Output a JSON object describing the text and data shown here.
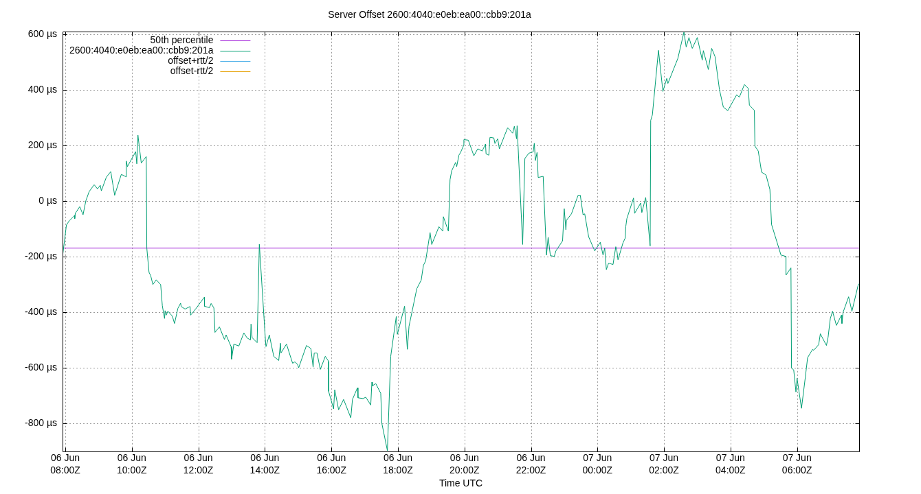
{
  "chart_data": {
    "type": "line",
    "title": "Server Offset 2600:4040:e0eb:ea00::cbb9:201a",
    "xlabel": "Time UTC",
    "x": [
      "--06-06T07:55",
      "--06-06T08:02",
      "--06-06T08:07",
      "--06-06T08:17",
      "--06-06T08:17",
      "--06-06T08:18",
      "--06-06T08:26",
      "--06-06T08:32",
      "--06-06T08:37",
      "--06-06T08:43",
      "--06-06T08:52",
      "--06-06T08:58",
      "--06-06T09:03",
      "--06-06T09:05",
      "--06-06T09:14",
      "--06-06T09:22",
      "--06-06T09:29",
      "--06-06T09:41",
      "--06-06T09:50",
      "--06-06T09:50",
      "--06-06T09:52",
      "--06-06T10:07",
      "--06-06T10:09",
      "--06-06T10:11",
      "--06-06T10:17",
      "--06-06T10:26",
      "--06-06T10:27",
      "--06-06T10:31",
      "--06-06T10:34",
      "--06-06T10:38",
      "--06-06T10:44",
      "--06-06T10:52",
      "--06-06T10:55",
      "--06-06T10:56",
      "--06-06T10:59",
      "--06-06T11:00",
      "--06-06T11:02",
      "--06-06T11:05",
      "--06-06T11:13",
      "--06-06T11:17",
      "--06-06T11:23",
      "--06-06T11:28",
      "--06-06T11:29",
      "--06-06T11:36",
      "--06-06T11:45",
      "--06-06T11:46",
      "--06-06T11:55",
      "--06-06T12:11",
      "--06-06T12:11",
      "--06-06T12:20",
      "--06-06T12:23",
      "--06-06T12:28",
      "--06-06T12:30",
      "--06-06T12:38",
      "--06-06T12:47",
      "--06-06T12:50",
      "--06-06T12:59",
      "--06-06T13:00",
      "--06-06T13:04",
      "--06-06T13:13",
      "--06-06T13:22",
      "--06-06T13:28",
      "--06-06T13:34",
      "--06-06T13:35",
      "--06-06T13:37",
      "--06-06T13:46",
      "--06-06T13:50",
      "--06-06T14:01",
      "--06-06T14:02",
      "--06-06T14:08",
      "--06-06T14:16",
      "--06-06T14:25",
      "--06-06T14:28",
      "--06-06T14:29",
      "--06-06T14:39",
      "--06-06T14:50",
      "--06-06T14:54",
      "--06-06T14:59",
      "--06-06T15:01",
      "--06-06T15:15",
      "--06-06T15:23",
      "--06-06T15:27",
      "--06-06T15:29",
      "--06-06T15:34",
      "--06-06T15:40",
      "--06-06T15:49",
      "--06-06T15:55",
      "--06-06T15:55",
      "--06-06T16:04",
      "--06-06T16:06",
      "--06-06T16:13",
      "--06-06T16:22",
      "--06-06T16:35",
      "--06-06T16:38",
      "--06-06T16:47",
      "--06-06T16:48",
      "--06-06T16:57",
      "--06-06T17:02",
      "--06-06T17:11",
      "--06-06T17:13",
      "--06-06T17:14",
      "--06-06T17:20",
      "--06-06T17:29",
      "--06-06T17:31",
      "--06-06T17:41",
      "--06-06T17:47",
      "--06-06T17:57",
      "--06-06T17:59",
      "--06-06T18:12",
      "--06-06T18:17",
      "--06-06T18:20",
      "--06-06T18:34",
      "--06-06T18:42",
      "--06-06T18:46",
      "--06-06T18:50",
      "--06-06T18:58",
      "--06-06T19:01",
      "--06-06T19:14",
      "--06-06T19:21",
      "--06-06T19:22",
      "--06-06T19:31",
      "--06-06T19:34",
      "--06-06T19:37",
      "--06-06T19:44",
      "--06-06T19:46",
      "--06-06T19:50",
      "--06-06T19:53",
      "--06-06T19:59",
      "--06-06T19:59",
      "--06-06T20:07",
      "--06-06T20:17",
      "--06-06T20:24",
      "--06-06T20:32",
      "--06-06T20:38",
      "--06-06T20:39",
      "--06-06T20:44",
      "--06-06T20:46",
      "--06-06T20:53",
      "--06-06T20:55",
      "--06-06T21:00",
      "--06-06T21:03",
      "--06-06T21:12",
      "--06-06T21:18",
      "--06-06T21:27",
      "--06-06T21:30",
      "--06-06T21:34",
      "--06-06T21:35",
      "--06-06T21:45",
      "--06-06T21:49",
      "--06-06T21:56",
      "--06-06T22:04",
      "--06-06T22:06",
      "--06-06T22:08",
      "--06-06T22:11",
      "--06-06T22:13",
      "--06-06T22:22",
      "--06-06T22:28",
      "--06-06T22:31",
      "--06-06T22:35",
      "--06-06T22:42",
      "--06-06T22:45",
      "--06-06T22:57",
      "--06-06T23:00",
      "--06-06T23:03",
      "--06-06T23:04",
      "--06-06T23:13",
      "--06-06T23:25",
      "--06-06T23:29",
      "--06-06T23:34",
      "--06-06T23:37",
      "--06-06T23:44",
      "--06-06T23:55",
      "--06-07T00:05",
      "--06-07T00:10",
      "--06-07T00:13",
      "--06-07T00:16",
      "--06-07T00:20",
      "--06-07T00:28",
      "--06-07T00:33",
      "--06-07T00:35",
      "--06-07T00:37",
      "--06-07T00:46",
      "--06-07T00:50",
      "--06-07T00:51",
      "--06-07T00:53",
      "--06-07T01:05",
      "--06-07T01:07",
      "--06-07T01:18",
      "--06-07T01:20",
      "--06-07T01:27",
      "--06-07T01:35",
      "--06-07T01:36",
      "--06-07T01:39",
      "--06-07T01:50",
      "--06-07T01:58",
      "--06-07T02:05",
      "--06-07T02:07",
      "--06-07T02:25",
      "--06-07T02:36",
      "--06-07T02:40",
      "--06-07T02:45",
      "--06-07T02:51",
      "--06-07T03:00",
      "--06-07T03:09",
      "--06-07T03:11",
      "--06-07T03:20",
      "--06-07T03:26",
      "--06-07T03:32",
      "--06-07T03:40",
      "--06-07T03:47",
      "--06-07T03:55",
      "--06-07T04:11",
      "--06-07T04:16",
      "--06-07T04:25",
      "--06-07T04:32",
      "--06-07T04:34",
      "--06-07T04:43",
      "--06-07T04:44",
      "--06-07T04:50",
      "--06-07T04:56",
      "--06-07T05:04",
      "--06-07T05:11",
      "--06-07T05:14",
      "--06-07T05:31",
      "--06-07T05:40",
      "--06-07T05:40",
      "--06-07T05:49",
      "--06-07T05:50",
      "--06-07T05:54",
      "--06-07T05:58",
      "--06-07T06:00",
      "--06-07T06:08",
      "--06-07T06:15",
      "--06-07T06:19",
      "--06-07T06:28",
      "--06-07T06:30",
      "--06-07T06:39",
      "--06-07T06:42",
      "--06-07T06:53",
      "--06-07T06:56",
      "--06-07T07:00",
      "--06-07T07:04",
      "--06-07T07:11",
      "--06-07T07:20",
      "--06-07T07:21",
      "--06-07T07:23",
      "--06-07T07:33",
      "--06-07T07:39",
      "--06-07T07:50",
      "--06-07T07:52"
    ],
    "series": [
      {
        "name": "2600:4040:e0eb:ea00::cbb9:201a",
        "color": "#009e73",
        "values": [
          -199,
          -86,
          -71,
          -51,
          -63,
          -44,
          -20,
          -49,
          1,
          34,
          59,
          44,
          57,
          37,
          86,
          106,
          21,
          96,
          87,
          144,
          124,
          178,
          134,
          237,
          137,
          160,
          -169,
          -256,
          -268,
          -300,
          -283,
          -300,
          -376,
          -376,
          -422,
          -394,
          -410,
          -396,
          -413,
          -440,
          -386,
          -367,
          -379,
          -388,
          -379,
          -410,
          -388,
          -345,
          -378,
          -383,
          -368,
          -384,
          -472,
          -452,
          -497,
          -481,
          -523,
          -568,
          -514,
          -521,
          -474,
          -492,
          -499,
          -442,
          -491,
          -509,
          -155,
          -500,
          -523,
          -481,
          -558,
          -573,
          -511,
          -546,
          -514,
          -583,
          -578,
          -587,
          -599,
          -519,
          -530,
          -597,
          -546,
          -546,
          -605,
          -558,
          -576,
          -684,
          -747,
          -678,
          -750,
          -713,
          -779,
          -713,
          -671,
          -707,
          -710,
          -705,
          -733,
          -651,
          -664,
          -656,
          -691,
          -799,
          -897,
          -558,
          -415,
          -479,
          -378,
          -533,
          -450,
          -315,
          -284,
          -231,
          -215,
          -113,
          -156,
          -92,
          -108,
          -56,
          -108,
          77,
          109,
          139,
          124,
          165,
          175,
          202,
          221,
          219,
          163,
          188,
          180,
          205,
          170,
          165,
          229,
          227,
          207,
          224,
          188,
          234,
          264,
          244,
          269,
          224,
          271,
          -156,
          153,
          172,
          177,
          208,
          146,
          175,
          85,
          89,
          -194,
          -130,
          -196,
          -199,
          -179,
          -143,
          -27,
          -103,
          -69,
          -46,
          21,
          21,
          -49,
          -46,
          -128,
          -179,
          -148,
          -194,
          -169,
          -246,
          -223,
          -228,
          -164,
          -179,
          -211,
          -150,
          -133,
          -92,
          -63,
          11,
          -44,
          -7,
          -41,
          13,
          -161,
          290,
          310,
          542,
          394,
          441,
          423,
          513,
          608,
          554,
          588,
          549,
          588,
          507,
          541,
          473,
          549,
          520,
          401,
          338,
          325,
          382,
          374,
          419,
          405,
          345,
          326,
          198,
          180,
          104,
          94,
          42,
          -84,
          -194,
          -199,
          -266,
          -240,
          -600,
          -607,
          -686,
          -637,
          -745,
          -632,
          -563,
          -533,
          -536,
          -516,
          -477,
          -519,
          -489,
          -422,
          -396,
          -447,
          -410,
          -440,
          -400,
          -344,
          -396,
          -304,
          -297
        ]
      },
      {
        "name": "offset+rtt/2",
        "color": "#56b4e9",
        "values": [
          null,
          null,
          null,
          null,
          null,
          null,
          null,
          null,
          null,
          null,
          null,
          null,
          null,
          null,
          null,
          null,
          null,
          null,
          null,
          null,
          null,
          null,
          null,
          null,
          null,
          null,
          null,
          null,
          null,
          null,
          null,
          null,
          null,
          null,
          null,
          null,
          null,
          null,
          null,
          null,
          null,
          null,
          null,
          null,
          null,
          null,
          null,
          null,
          null,
          null,
          null,
          null,
          null,
          null,
          null,
          null,
          null,
          null,
          null,
          null,
          null,
          null,
          null,
          null,
          null,
          null,
          null,
          null,
          null,
          null,
          null,
          null,
          null,
          null,
          null,
          null,
          null,
          null,
          null,
          null,
          null,
          null,
          null,
          null,
          null,
          null,
          null,
          null,
          null,
          null,
          null,
          null,
          null,
          null,
          null,
          null,
          null,
          null,
          null,
          null,
          null,
          null,
          null,
          null,
          null,
          null,
          null,
          null,
          null,
          null,
          null,
          null,
          null,
          null,
          null,
          null,
          null,
          null,
          null,
          null,
          null,
          null,
          null,
          null,
          null,
          null,
          null,
          null,
          null,
          null,
          null,
          null,
          null,
          null,
          null,
          null,
          null,
          null,
          null,
          null,
          null,
          null,
          null,
          null,
          null,
          null,
          null,
          null,
          null,
          null,
          null,
          null,
          null,
          null,
          null,
          null,
          null,
          null,
          null,
          null,
          null,
          null,
          null,
          null,
          null,
          null,
          null,
          null,
          null,
          null,
          null,
          null,
          null,
          null,
          null,
          null,
          null,
          null,
          null,
          null,
          null,
          null,
          null,
          null,
          null,
          null,
          null,
          null,
          null,
          null,
          null,
          null,
          null,
          null,
          null,
          null,
          null,
          null,
          null,
          null,
          null,
          null,
          null,
          null,
          null,
          null,
          null,
          null,
          null,
          null,
          null,
          null,
          null,
          null,
          null,
          null,
          null,
          null,
          null,
          null,
          null,
          null,
          null,
          null,
          null,
          null,
          null,
          null,
          null,
          null,
          null,
          null,
          null,
          null,
          null,
          null,
          null,
          null,
          null,
          null,
          null,
          null,
          null,
          null,
          null,
          null,
          null,
          null,
          null,
          null
        ]
      },
      {
        "name": "offset-rtt/2",
        "color": "#e69f00",
        "values": [
          null,
          null,
          null,
          null,
          null,
          null,
          null,
          null,
          null,
          null,
          null,
          null,
          null,
          null,
          null,
          null,
          null,
          null,
          null,
          null,
          null,
          null,
          null,
          null,
          null,
          null,
          null,
          null,
          null,
          null,
          null,
          null,
          null,
          null,
          null,
          null,
          null,
          null,
          null,
          null,
          null,
          null,
          null,
          null,
          null,
          null,
          null,
          null,
          null,
          null,
          null,
          null,
          null,
          null,
          null,
          null,
          null,
          null,
          null,
          null,
          null,
          null,
          null,
          null,
          null,
          null,
          null,
          null,
          null,
          null,
          null,
          null,
          null,
          null,
          null,
          null,
          null,
          null,
          null,
          null,
          null,
          null,
          null,
          null,
          null,
          null,
          null,
          null,
          null,
          null,
          null,
          null,
          null,
          null,
          null,
          null,
          null,
          null,
          null,
          null,
          null,
          null,
          null,
          null,
          null,
          null,
          null,
          null,
          null,
          null,
          null,
          null,
          null,
          null,
          null,
          null,
          null,
          null,
          null,
          null,
          null,
          null,
          null,
          null,
          null,
          null,
          null,
          null,
          null,
          null,
          null,
          null,
          null,
          null,
          null,
          null,
          null,
          null,
          null,
          null,
          null,
          null,
          null,
          null,
          null,
          null,
          null,
          null,
          null,
          null,
          null,
          null,
          null,
          null,
          null,
          null,
          null,
          null,
          null,
          null,
          null,
          null,
          null,
          null,
          null,
          null,
          null,
          null,
          null,
          null,
          null,
          null,
          null,
          null,
          null,
          null,
          null,
          null,
          null,
          null,
          null,
          null,
          null,
          null,
          null,
          null,
          null,
          null,
          null,
          null,
          null,
          null,
          null,
          null,
          null,
          null,
          null,
          null,
          null,
          null,
          null,
          null,
          null,
          null,
          null,
          null,
          null,
          null,
          null,
          null,
          null,
          null,
          null,
          null,
          null,
          null,
          null,
          null,
          null,
          null,
          null,
          null,
          null,
          null,
          null,
          null,
          null,
          null,
          null,
          null,
          null,
          null,
          null,
          null,
          null,
          null,
          null,
          null,
          null,
          null,
          null,
          null,
          null,
          null,
          null,
          null,
          null,
          null,
          null,
          null
        ]
      }
    ],
    "ref_lines": [
      {
        "axis": "y",
        "value": -167,
        "label": "50th percentile",
        "color": "#9400d3"
      }
    ],
    "xlim": [
      "--06-06T07:55",
      "--06-07T07:52"
    ],
    "xticks": [
      {
        "value": "--06-06T08:00",
        "label": "06 Jun\n08:00Z"
      },
      {
        "value": "--06-06T10:00",
        "label": "06 Jun\n10:00Z"
      },
      {
        "value": "--06-06T12:00",
        "label": "06 Jun\n12:00Z"
      },
      {
        "value": "--06-06T14:00",
        "label": "06 Jun\n14:00Z"
      },
      {
        "value": "--06-06T16:00",
        "label": "06 Jun\n16:00Z"
      },
      {
        "value": "--06-06T18:00",
        "label": "06 Jun\n18:00Z"
      },
      {
        "value": "--06-06T20:00",
        "label": "06 Jun\n20:00Z"
      },
      {
        "value": "--06-06T22:00",
        "label": "06 Jun\n22:00Z"
      },
      {
        "value": "--06-07T00:00",
        "label": "07 Jun\n00:00Z"
      },
      {
        "value": "--06-07T02:00",
        "label": "07 Jun\n02:00Z"
      },
      {
        "value": "--06-07T04:00",
        "label": "07 Jun\n04:00Z"
      },
      {
        "value": "--06-07T06:00",
        "label": "07 Jun\n06:00Z"
      }
    ],
    "ylim": [
      -900,
      610
    ],
    "yticks": [
      {
        "value": 600,
        "label": "600 µs"
      },
      {
        "value": 400,
        "label": "400 µs"
      },
      {
        "value": 200,
        "label": "200 µs"
      },
      {
        "value": 0,
        "label": "0 µs"
      },
      {
        "value": -200,
        "label": "-200 µs"
      },
      {
        "value": -400,
        "label": "-400 µs"
      },
      {
        "value": -600,
        "label": "-600 µs"
      },
      {
        "value": -800,
        "label": "-800 µs"
      }
    ],
    "grid": true,
    "legend": "top left"
  }
}
